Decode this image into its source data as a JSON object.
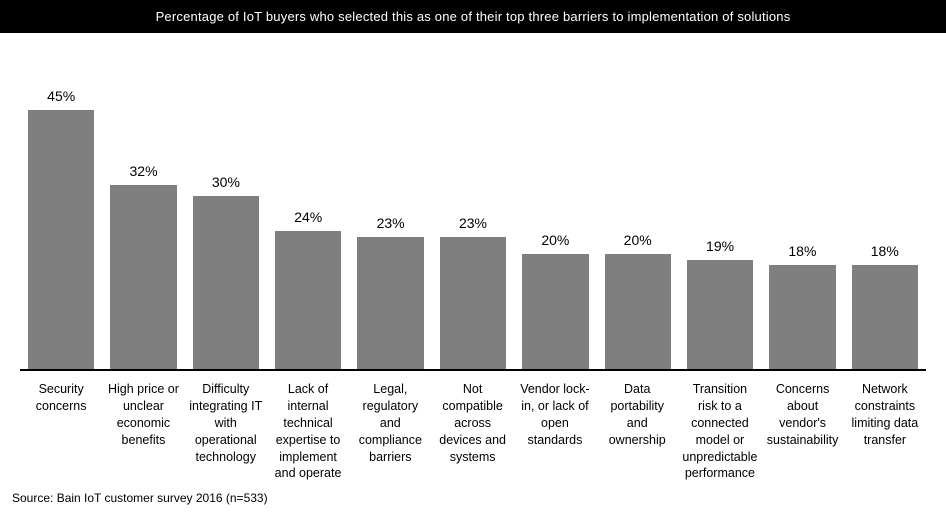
{
  "chart": {
    "type": "bar",
    "title": "Percentage of IoT buyers who selected this as one of their top three barriers to implementation of solutions",
    "title_fontsize": 13,
    "title_bg": "#000000",
    "title_color": "#ffffff",
    "background_color": "#ffffff",
    "bar_color": "#7f7f7f",
    "baseline_color": "#000000",
    "value_fontsize": 14,
    "label_fontsize": 12.5,
    "ylim": [
      0,
      50
    ],
    "value_suffix": "%",
    "bars": [
      {
        "label": "Security concerns",
        "value": 45
      },
      {
        "label": "High price or unclear economic benefits",
        "value": 32
      },
      {
        "label": "Difficulty integrating IT with operational technology",
        "value": 30
      },
      {
        "label": "Lack of internal technical expertise to implement and operate",
        "value": 24
      },
      {
        "label": "Legal, regulatory and compliance barriers",
        "value": 23
      },
      {
        "label": "Not compatible across devices and systems",
        "value": 23
      },
      {
        "label": "Vendor lock-in, or lack of open standards",
        "value": 20
      },
      {
        "label": "Data portability and ownership",
        "value": 20
      },
      {
        "label": "Transition risk to a connected model or unpredictable performance",
        "value": 19
      },
      {
        "label": "Concerns about vendor's sustainability",
        "value": 18
      },
      {
        "label": "Network constraints limiting data transfer",
        "value": 18
      }
    ]
  },
  "source": "Source: Bain IoT customer survey 2016 (n=533)"
}
